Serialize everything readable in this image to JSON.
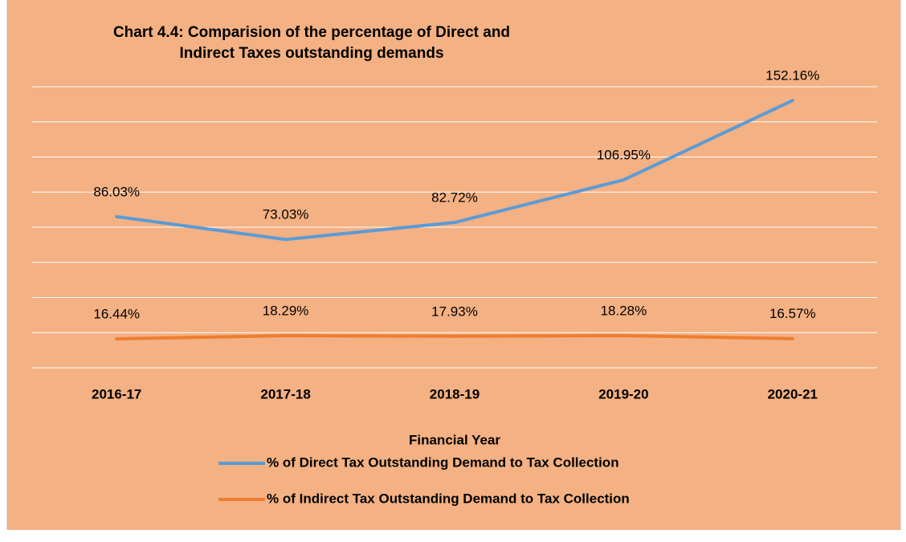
{
  "chart_data": {
    "type": "line",
    "title": "Chart 4.4: Comparision of the percentage of Direct and Indirect Taxes outstanding demands",
    "x_label": "Financial Year",
    "categories": [
      "2016-17",
      "2017-18",
      "2018-19",
      "2019-20",
      "2020-21"
    ],
    "series": [
      {
        "name": "% of Direct Tax Outstanding Demand to Tax Collection",
        "color": "#5b9bd5",
        "values": [
          86.03,
          73.03,
          82.72,
          106.95,
          152.16
        ],
        "value_labels": [
          "86.03%",
          "73.03%",
          "82.72%",
          "106.95%",
          "152.16%"
        ]
      },
      {
        "name": "% of Indirect Tax Outstanding Demand to Tax Collection",
        "color": "#ed7d31",
        "values": [
          16.44,
          18.29,
          17.93,
          18.28,
          16.57
        ],
        "value_labels": [
          "16.44%",
          "18.29%",
          "17.93%",
          "18.28%",
          "16.57%"
        ]
      }
    ],
    "ylim": [
      0,
      160
    ],
    "yticks": [
      0,
      20,
      40,
      60,
      80,
      100,
      120,
      140,
      160
    ],
    "grid": true
  }
}
